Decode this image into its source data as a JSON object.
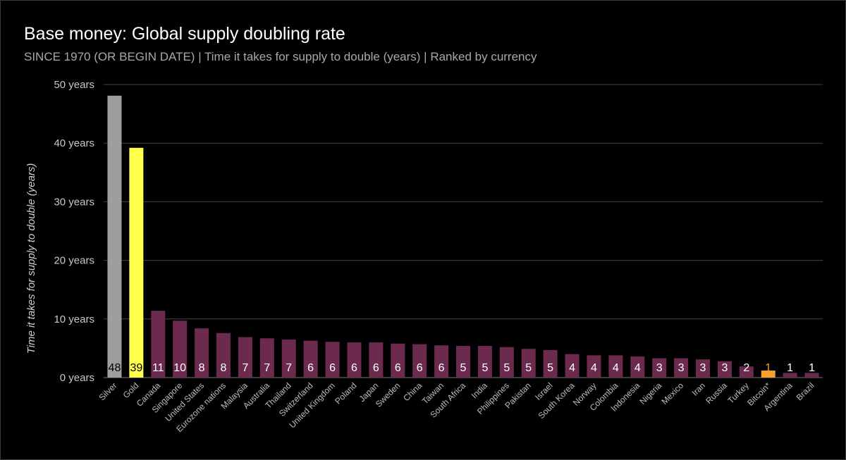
{
  "chart_data": {
    "type": "bar",
    "title": "Base money: Global supply doubling rate",
    "subtitle": "SINCE 1970 (OR BEGIN DATE) | Time it takes for supply to double (years) | Ranked by currency",
    "xlabel": "",
    "ylabel": "Time it takes for supply to double (years)",
    "ylim": [
      0,
      50
    ],
    "yticks": [
      {
        "value": 0,
        "label": "0 years"
      },
      {
        "value": 10,
        "label": "10 years"
      },
      {
        "value": 20,
        "label": "20 years"
      },
      {
        "value": 30,
        "label": "30 years"
      },
      {
        "value": 40,
        "label": "40 years"
      },
      {
        "value": 50,
        "label": "50 years"
      }
    ],
    "grid": true,
    "legend": "none",
    "categories": [
      "Silver",
      "Gold",
      "Canada",
      "Singapore",
      "United States",
      "Eurozone nations",
      "Malaysia",
      "Australia",
      "Thailand",
      "Switzerland",
      "United Kingdom",
      "Poland",
      "Japan",
      "Sweden",
      "China",
      "Taiwan",
      "South Africa",
      "India",
      "Philippines",
      "Pakistan",
      "Israel",
      "South Korea",
      "Norway",
      "Colombia",
      "Indonesia",
      "Nigeria",
      "Mexico",
      "Iran",
      "Russia",
      "Turkey",
      "Bitcoin*",
      "Argentina",
      "Brazil"
    ],
    "values": [
      48.1,
      39.2,
      11.4,
      9.7,
      8.4,
      7.6,
      6.9,
      6.7,
      6.5,
      6.3,
      6.1,
      6.0,
      6.0,
      5.8,
      5.7,
      5.5,
      5.4,
      5.4,
      5.2,
      4.9,
      4.7,
      4.0,
      3.8,
      3.8,
      3.6,
      3.3,
      3.3,
      3.1,
      2.8,
      1.9,
      1.2,
      0.8,
      0.8
    ],
    "labels": [
      "48",
      "39",
      "11",
      "10",
      "8",
      "8",
      "7",
      "7",
      "7",
      "6",
      "6",
      "6",
      "6",
      "6",
      "6",
      "6",
      "5",
      "5",
      "5",
      "5",
      "5",
      "4",
      "4",
      "4",
      "4",
      "3",
      "3",
      "3",
      "3",
      "2",
      "1",
      "1",
      "1"
    ],
    "colors": [
      "#9e9e9e",
      "#ffff4d",
      "#6b2a4e",
      "#6b2a4e",
      "#6b2a4e",
      "#6b2a4e",
      "#6b2a4e",
      "#6b2a4e",
      "#6b2a4e",
      "#6b2a4e",
      "#6b2a4e",
      "#6b2a4e",
      "#6b2a4e",
      "#6b2a4e",
      "#6b2a4e",
      "#6b2a4e",
      "#6b2a4e",
      "#6b2a4e",
      "#6b2a4e",
      "#6b2a4e",
      "#6b2a4e",
      "#6b2a4e",
      "#6b2a4e",
      "#6b2a4e",
      "#6b2a4e",
      "#6b2a4e",
      "#6b2a4e",
      "#6b2a4e",
      "#6b2a4e",
      "#6b2a4e",
      "#f5a02e",
      "#6b2a4e",
      "#6b2a4e"
    ],
    "label_colors": [
      "#000000",
      "#000000",
      "#ffffff",
      "#ffffff",
      "#ffffff",
      "#ffffff",
      "#ffffff",
      "#ffffff",
      "#ffffff",
      "#ffffff",
      "#ffffff",
      "#ffffff",
      "#ffffff",
      "#ffffff",
      "#ffffff",
      "#ffffff",
      "#ffffff",
      "#ffffff",
      "#ffffff",
      "#ffffff",
      "#ffffff",
      "#ffffff",
      "#ffffff",
      "#ffffff",
      "#ffffff",
      "#ffffff",
      "#ffffff",
      "#ffffff",
      "#ffffff",
      "#ffffff",
      "#f5a02e",
      "#ffffff",
      "#ffffff"
    ]
  }
}
